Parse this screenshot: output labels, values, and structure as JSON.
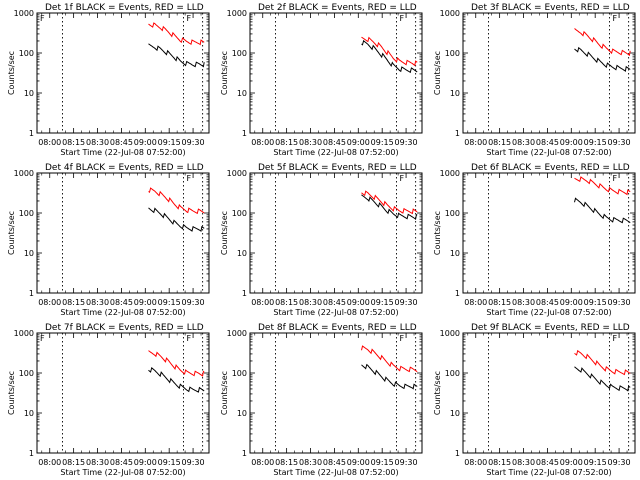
{
  "figure": {
    "xlabel": "Start Time (22-Jul-08 07:52:00)",
    "ylabel": "Counts/sec"
  },
  "chart_data": [
    {
      "type": "line",
      "title": "Det 1f BLACK = Events, RED = LLD",
      "xticks": [
        "08:00",
        "08:15",
        "08:30",
        "08:45",
        "09:00",
        "09:15",
        "09:30"
      ],
      "xlim_min": [
        -8,
        100
      ],
      "ylim": [
        1,
        1000
      ],
      "yscale": "log",
      "yticks": [
        "1",
        "10",
        "100",
        "1000"
      ],
      "event_markers": [
        {
          "t": 8,
          "label": ""
        },
        {
          "t": 84,
          "label": ""
        },
        {
          "t": 96,
          "label": ""
        }
      ],
      "marker_letters": [
        "F",
        "F"
      ],
      "series": [
        {
          "color": "#000000",
          "x": [
            62,
            66,
            70,
            74,
            78,
            82,
            86,
            90,
            94,
            97
          ],
          "y": [
            150,
            140,
            122,
            100,
            80,
            62,
            54,
            52,
            52,
            52
          ]
        },
        {
          "color": "#ff0000",
          "x": [
            62,
            66,
            70,
            74,
            78,
            82,
            86,
            90,
            94,
            97
          ],
          "y": [
            530,
            490,
            430,
            350,
            270,
            215,
            195,
            185,
            185,
            185
          ]
        }
      ]
    },
    {
      "type": "line",
      "title": "Det 2f BLACK = Events, RED = LLD",
      "xticks": [
        "08:00",
        "08:15",
        "08:30",
        "08:45",
        "09:00",
        "09:15",
        "09:30"
      ],
      "xlim_min": [
        -8,
        100
      ],
      "ylim": [
        1,
        1000
      ],
      "yscale": "log",
      "yticks": [
        "1",
        "10",
        "100",
        "1000"
      ],
      "event_markers": [
        {
          "t": 8,
          "label": ""
        },
        {
          "t": 84,
          "label": ""
        },
        {
          "t": 96,
          "label": ""
        }
      ],
      "marker_letters": [
        "F"
      ],
      "series": [
        {
          "color": "#000000",
          "x": [
            62,
            66,
            70,
            74,
            78,
            82,
            86,
            90,
            94,
            97
          ],
          "y": [
            185,
            165,
            130,
            95,
            68,
            48,
            40,
            38,
            37,
            37
          ]
        },
        {
          "color": "#ff0000",
          "x": [
            62,
            66,
            70,
            74,
            78,
            82,
            86,
            90,
            94,
            97
          ],
          "y": [
            235,
            220,
            185,
            145,
            105,
            75,
            62,
            58,
            56,
            55
          ]
        }
      ]
    },
    {
      "type": "line",
      "title": "Det 3f BLACK = Events, RED = LLD",
      "xticks": [
        "08:00",
        "08:15",
        "08:30",
        "08:45",
        "09:00",
        "09:15",
        "09:30"
      ],
      "xlim_min": [
        -8,
        100
      ],
      "ylim": [
        1,
        1000
      ],
      "yscale": "log",
      "yticks": [
        "1",
        "10",
        "100",
        "1000"
      ],
      "event_markers": [
        {
          "t": 8,
          "label": ""
        },
        {
          "t": 84,
          "label": ""
        },
        {
          "t": 96,
          "label": ""
        }
      ],
      "marker_letters": [
        "F"
      ],
      "series": [
        {
          "color": "#000000",
          "x": [
            62,
            66,
            70,
            74,
            78,
            82,
            86,
            90,
            94,
            97
          ],
          "y": [
            130,
            115,
            95,
            75,
            60,
            50,
            45,
            42,
            40,
            40
          ]
        },
        {
          "color": "#ff0000",
          "x": [
            62,
            66,
            70,
            74,
            78,
            82,
            86,
            90,
            94,
            97
          ],
          "y": [
            360,
            330,
            270,
            210,
            160,
            130,
            110,
            105,
            100,
            100
          ]
        }
      ]
    },
    {
      "type": "line",
      "title": "Det 4f BLACK = Events, RED = LLD",
      "xticks": [
        "08:00",
        "08:15",
        "08:30",
        "08:45",
        "09:00",
        "09:15",
        "09:30"
      ],
      "xlim_min": [
        -8,
        100
      ],
      "ylim": [
        1,
        1000
      ],
      "yscale": "log",
      "yticks": [
        "1",
        "10",
        "100",
        "1000"
      ],
      "event_markers": [
        {
          "t": 8,
          "label": ""
        },
        {
          "t": 84,
          "label": ""
        },
        {
          "t": 96,
          "label": ""
        }
      ],
      "marker_letters": [
        "F"
      ],
      "series": [
        {
          "color": "#000000",
          "x": [
            62,
            66,
            70,
            74,
            78,
            82,
            86,
            90,
            94,
            97
          ],
          "y": [
            130,
            115,
            95,
            75,
            58,
            48,
            42,
            40,
            40,
            40
          ]
        },
        {
          "color": "#ff0000",
          "x": [
            62,
            66,
            70,
            74,
            78,
            82,
            86,
            90,
            94,
            97
          ],
          "y": [
            380,
            350,
            290,
            230,
            170,
            135,
            118,
            112,
            110,
            110
          ]
        }
      ]
    },
    {
      "type": "line",
      "title": "Det 5f BLACK = Events, RED = LLD",
      "xticks": [
        "08:00",
        "08:15",
        "08:30",
        "08:45",
        "09:00",
        "09:15",
        "09:30"
      ],
      "xlim_min": [
        -8,
        100
      ],
      "ylim": [
        1,
        1000
      ],
      "yscale": "log",
      "yticks": [
        "1",
        "10",
        "100",
        "1000"
      ],
      "event_markers": [
        {
          "t": 8,
          "label": ""
        },
        {
          "t": 84,
          "label": ""
        },
        {
          "t": 96,
          "label": ""
        }
      ],
      "marker_letters": [
        "F"
      ],
      "series": [
        {
          "color": "#000000",
          "x": [
            62,
            66,
            70,
            74,
            78,
            82,
            86,
            90,
            94,
            97
          ],
          "y": [
            260,
            235,
            190,
            150,
            115,
            95,
            85,
            82,
            80,
            80
          ]
        },
        {
          "color": "#ff0000",
          "x": [
            62,
            66,
            70,
            74,
            78,
            82,
            86,
            90,
            94,
            97
          ],
          "y": [
            330,
            300,
            250,
            200,
            155,
            128,
            115,
            112,
            110,
            110
          ]
        }
      ]
    },
    {
      "type": "line",
      "title": "Det 6f BLACK = Events, RED = LLD",
      "xticks": [
        "08:00",
        "08:15",
        "08:30",
        "08:45",
        "09:00",
        "09:15",
        "09:30"
      ],
      "xlim_min": [
        -8,
        100
      ],
      "ylim": [
        1,
        1000
      ],
      "yscale": "log",
      "yticks": [
        "1",
        "10",
        "100",
        "1000"
      ],
      "event_markers": [
        {
          "t": 8,
          "label": ""
        },
        {
          "t": 84,
          "label": ""
        },
        {
          "t": 96,
          "label": ""
        }
      ],
      "marker_letters": [
        "F"
      ],
      "series": [
        {
          "color": "#000000",
          "x": [
            62,
            66,
            70,
            74,
            78,
            82,
            86,
            90,
            94,
            97
          ],
          "y": [
            210,
            185,
            150,
            118,
            92,
            76,
            68,
            66,
            65,
            65
          ]
        },
        {
          "color": "#ff0000",
          "x": [
            62,
            66,
            70,
            74,
            78,
            82,
            86,
            90,
            94,
            97
          ],
          "y": [
            720,
            700,
            650,
            560,
            470,
            400,
            360,
            340,
            330,
            330
          ]
        }
      ]
    },
    {
      "type": "line",
      "title": "Det 7f BLACK = Events, RED = LLD",
      "xticks": [
        "08:00",
        "08:15",
        "08:30",
        "08:45",
        "09:00",
        "09:15",
        "09:30"
      ],
      "xlim_min": [
        -8,
        100
      ],
      "ylim": [
        1,
        1000
      ],
      "yscale": "log",
      "yticks": [
        "1",
        "10",
        "100",
        "1000"
      ],
      "event_markers": [
        {
          "t": 8,
          "label": ""
        },
        {
          "t": 84,
          "label": ""
        },
        {
          "t": 96,
          "label": ""
        }
      ],
      "marker_letters": [
        "F",
        "F"
      ],
      "series": [
        {
          "color": "#000000",
          "x": [
            62,
            66,
            70,
            74,
            78,
            82,
            86,
            90,
            94,
            97
          ],
          "y": [
            125,
            112,
            92,
            72,
            56,
            46,
            40,
            38,
            38,
            38
          ]
        },
        {
          "color": "#ff0000",
          "x": [
            62,
            66,
            70,
            74,
            78,
            82,
            86,
            90,
            94,
            97
          ],
          "y": [
            330,
            305,
            255,
            200,
            150,
            118,
            102,
            98,
            96,
            96
          ]
        }
      ]
    },
    {
      "type": "line",
      "title": "Det 8f BLACK = Events, RED = LLD",
      "xticks": [
        "08:00",
        "08:15",
        "08:30",
        "08:45",
        "09:00",
        "09:15",
        "09:30"
      ],
      "xlim_min": [
        -8,
        100
      ],
      "ylim": [
        1,
        1000
      ],
      "yscale": "log",
      "yticks": [
        "1",
        "10",
        "100",
        "1000"
      ],
      "event_markers": [
        {
          "t": 8,
          "label": ""
        },
        {
          "t": 84,
          "label": ""
        },
        {
          "t": 96,
          "label": ""
        }
      ],
      "marker_letters": [
        "F"
      ],
      "series": [
        {
          "color": "#000000",
          "x": [
            62,
            66,
            70,
            74,
            78,
            82,
            86,
            90,
            94,
            97
          ],
          "y": [
            160,
            140,
            110,
            85,
            66,
            54,
            48,
            46,
            46,
            46
          ]
        },
        {
          "color": "#ff0000",
          "x": [
            62,
            66,
            70,
            74,
            78,
            82,
            86,
            90,
            94,
            97
          ],
          "y": [
            420,
            390,
            320,
            250,
            190,
            150,
            130,
            125,
            122,
            122
          ]
        }
      ]
    },
    {
      "type": "line",
      "title": "Det 9f BLACK = Events, RED = LLD",
      "xticks": [
        "08:00",
        "08:15",
        "08:30",
        "08:45",
        "09:00",
        "09:15",
        "09:30"
      ],
      "xlim_min": [
        -8,
        100
      ],
      "ylim": [
        1,
        1000
      ],
      "yscale": "log",
      "yticks": [
        "1",
        "10",
        "100",
        "1000"
      ],
      "event_markers": [
        {
          "t": 8,
          "label": ""
        },
        {
          "t": 84,
          "label": ""
        },
        {
          "t": 96,
          "label": ""
        }
      ],
      "marker_letters": [
        "F"
      ],
      "series": [
        {
          "color": "#000000",
          "x": [
            62,
            66,
            70,
            74,
            78,
            82,
            86,
            90,
            94,
            97
          ],
          "y": [
            135,
            120,
            97,
            76,
            60,
            50,
            44,
            42,
            41,
            41
          ]
        },
        {
          "color": "#ff0000",
          "x": [
            62,
            66,
            70,
            74,
            78,
            82,
            86,
            90,
            94,
            97
          ],
          "y": [
            330,
            305,
            255,
            200,
            152,
            125,
            110,
            105,
            104,
            104
          ]
        }
      ]
    }
  ]
}
